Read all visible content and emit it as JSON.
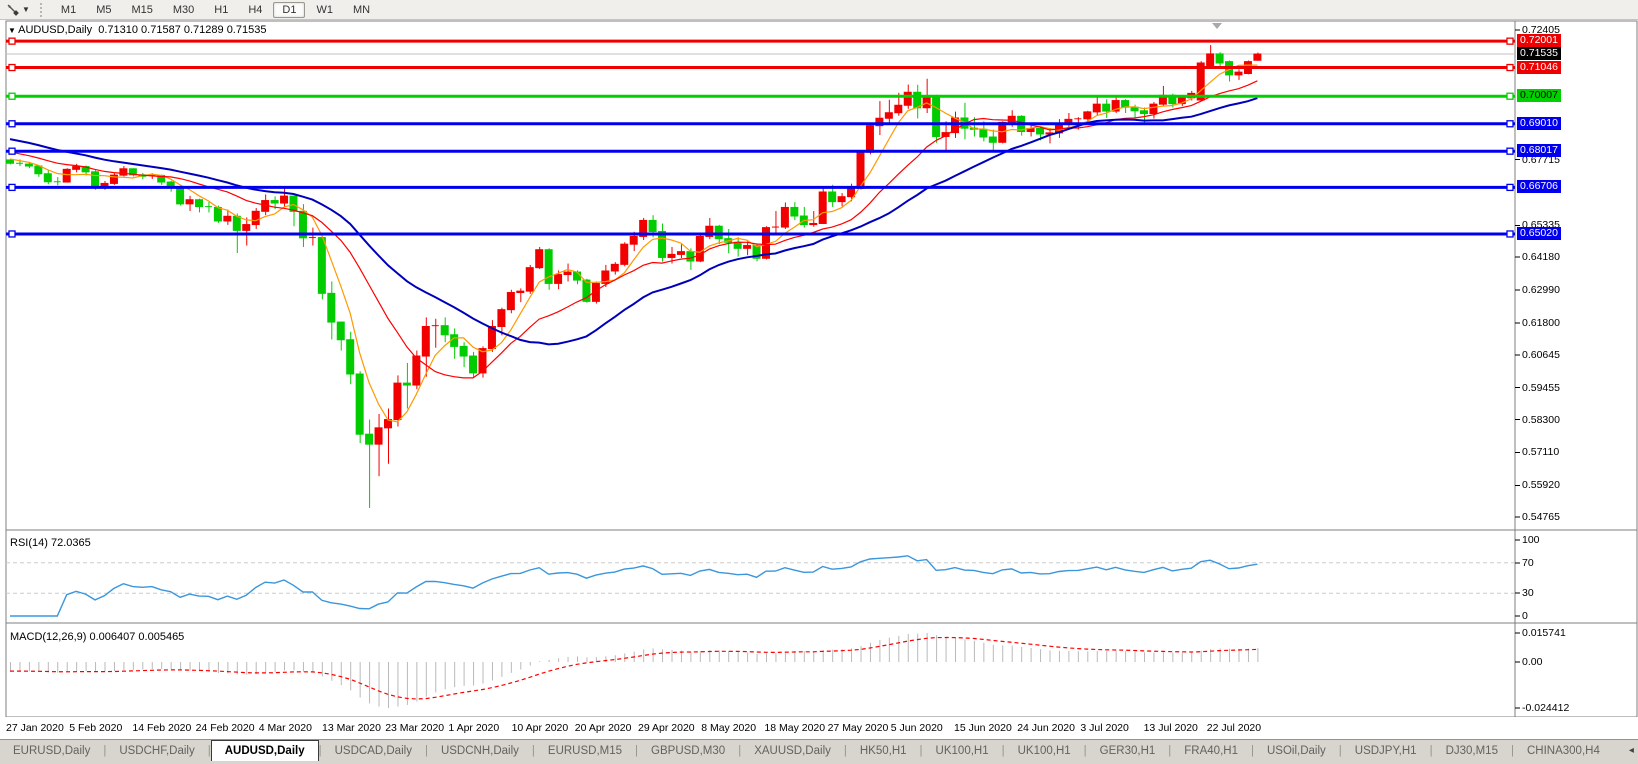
{
  "palette": {
    "up": "#f20000",
    "down": "#00cc00",
    "red_line": "#ee0000",
    "green_line": "#00d000",
    "blue_line": "#0000ee",
    "ma_fast": "#ff9900",
    "ma_mid": "#ff0000",
    "ma_slow": "#0000bb",
    "rsi_line": "#3a96dd",
    "macd_hist": "#b9b9b9",
    "macd_signal": "#ff0000",
    "current_line": "#c0c0c0",
    "grid_dash": "#cccccc"
  },
  "toolbar": {
    "periods": [
      "M1",
      "M5",
      "M15",
      "M30",
      "H1",
      "H4",
      "D1",
      "W1",
      "MN"
    ],
    "active_period": "D1",
    "indicator_icon": "cursor-indicator-icon"
  },
  "chart": {
    "title_symbol": "AUDUSD,Daily",
    "title_ohlc": "0.71310 0.71587 0.71289 0.71535",
    "current_price": "0.71535",
    "price_axis_ticks": [
      "0.72405",
      "0.67715",
      "0.65335",
      "0.64180",
      "0.62990",
      "0.61800",
      "0.60645",
      "0.59455",
      "0.58300",
      "0.57110",
      "0.55920",
      "0.54765"
    ],
    "hlines": [
      {
        "price": 0.72001,
        "label": "0.72001",
        "color": "red"
      },
      {
        "price": 0.71046,
        "label": "0.71046",
        "color": "red"
      },
      {
        "price": 0.70007,
        "label": "0.70007",
        "color": "green"
      },
      {
        "price": 0.6901,
        "label": "0.69010",
        "color": "blue"
      },
      {
        "price": 0.68017,
        "label": "0.68017",
        "color": "blue"
      },
      {
        "price": 0.66706,
        "label": "0.66706",
        "color": "blue"
      },
      {
        "price": 0.6502,
        "label": "0.65020",
        "color": "blue"
      }
    ]
  },
  "rsi": {
    "label": "RSI(14)",
    "value": "72.0365",
    "axis_ticks": [
      "100",
      "70",
      "30",
      "0"
    ],
    "levels": [
      70,
      30
    ],
    "period": 14
  },
  "macd": {
    "label": "MACD(12,26,9)",
    "values": "0.006407 0.005465",
    "axis_ticks": [
      "0.015741",
      "0.00",
      "-0.024412"
    ],
    "fast": 12,
    "slow": 26,
    "signal": 9
  },
  "chart_data": {
    "type": "candlestick",
    "symbol": "AUDUSD",
    "timeframe": "Daily",
    "note_color_convention": "up candles red, down candles green",
    "x_labels": [
      "27 Jan 2020",
      "5 Feb 2020",
      "14 Feb 2020",
      "24 Feb 2020",
      "4 Mar 2020",
      "13 Mar 2020",
      "23 Mar 2020",
      "1 Apr 2020",
      "10 Apr 2020",
      "20 Apr 2020",
      "29 Apr 2020",
      "8 May 2020",
      "18 May 2020",
      "27 May 2020",
      "5 Jun 2020",
      "15 Jun 2020",
      "24 Jun 2020",
      "3 Jul 2020",
      "13 Jul 2020",
      "22 Jul 2020"
    ],
    "y_range": {
      "top": 0.72405,
      "bottom": 0.54765
    },
    "moving_averages": [
      {
        "name": "fast",
        "window": 5,
        "color": "ma_fast"
      },
      {
        "name": "mid",
        "window": 13,
        "color": "ma_mid"
      },
      {
        "name": "slow",
        "window": 25,
        "color": "ma_slow"
      }
    ],
    "ma_seed": {
      "start": 0.709,
      "end": 0.6775,
      "count": 50
    },
    "candles": [
      [
        0.677,
        0.6774,
        0.6754,
        0.6758
      ],
      [
        0.6758,
        0.6772,
        0.6748,
        0.6755
      ],
      [
        0.6755,
        0.6763,
        0.674,
        0.6748
      ],
      [
        0.6748,
        0.6752,
        0.6709,
        0.672
      ],
      [
        0.672,
        0.6733,
        0.6682,
        0.6691
      ],
      [
        0.6691,
        0.6708,
        0.6678,
        0.669
      ],
      [
        0.669,
        0.674,
        0.6688,
        0.6736
      ],
      [
        0.6736,
        0.6756,
        0.6725,
        0.6746
      ],
      [
        0.6746,
        0.675,
        0.6714,
        0.6727
      ],
      [
        0.6727,
        0.6733,
        0.6662,
        0.667
      ],
      [
        0.667,
        0.6694,
        0.6662,
        0.6685
      ],
      [
        0.6685,
        0.6722,
        0.668,
        0.6715
      ],
      [
        0.6715,
        0.6748,
        0.671,
        0.6738
      ],
      [
        0.6738,
        0.674,
        0.671,
        0.6716
      ],
      [
        0.6716,
        0.6723,
        0.67,
        0.6711
      ],
      [
        0.6711,
        0.6722,
        0.6701,
        0.6714
      ],
      [
        0.6714,
        0.6717,
        0.668,
        0.669
      ],
      [
        0.669,
        0.6695,
        0.6655,
        0.6673
      ],
      [
        0.6673,
        0.6678,
        0.6605,
        0.6611
      ],
      [
        0.6611,
        0.664,
        0.6585,
        0.6626
      ],
      [
        0.6626,
        0.663,
        0.658,
        0.6601
      ],
      [
        0.6601,
        0.6618,
        0.658,
        0.6598
      ],
      [
        0.6598,
        0.6605,
        0.6542,
        0.6549
      ],
      [
        0.6549,
        0.659,
        0.6535,
        0.6566
      ],
      [
        0.6566,
        0.6576,
        0.6433,
        0.6515
      ],
      [
        0.6515,
        0.6562,
        0.646,
        0.6536
      ],
      [
        0.6536,
        0.6596,
        0.652,
        0.6584
      ],
      [
        0.6584,
        0.6645,
        0.657,
        0.6623
      ],
      [
        0.6623,
        0.6638,
        0.6592,
        0.6614
      ],
      [
        0.6614,
        0.667,
        0.66,
        0.6639
      ],
      [
        0.6639,
        0.664,
        0.653,
        0.6584
      ],
      [
        0.6584,
        0.661,
        0.6455,
        0.6488
      ],
      [
        0.6488,
        0.6525,
        0.646,
        0.6489
      ],
      [
        0.6489,
        0.6495,
        0.6265,
        0.6287
      ],
      [
        0.6287,
        0.633,
        0.612,
        0.6183
      ],
      [
        0.6183,
        0.6185,
        0.608,
        0.6119
      ],
      [
        0.6119,
        0.6148,
        0.5958,
        0.5995
      ],
      [
        0.5995,
        0.6005,
        0.5745,
        0.5777
      ],
      [
        0.5777,
        0.583,
        0.551,
        0.5741
      ],
      [
        0.5741,
        0.585,
        0.5625,
        0.58
      ],
      [
        0.58,
        0.587,
        0.567,
        0.583
      ],
      [
        0.583,
        0.599,
        0.5805,
        0.5962
      ],
      [
        0.5962,
        0.6035,
        0.587,
        0.5955
      ],
      [
        0.5955,
        0.608,
        0.594,
        0.606
      ],
      [
        0.606,
        0.62,
        0.5985,
        0.6167
      ],
      [
        0.6167,
        0.6195,
        0.609,
        0.617
      ],
      [
        0.617,
        0.62,
        0.611,
        0.6137
      ],
      [
        0.6137,
        0.616,
        0.605,
        0.6095
      ],
      [
        0.6095,
        0.611,
        0.602,
        0.606
      ],
      [
        0.606,
        0.6075,
        0.598,
        0.5999
      ],
      [
        0.5999,
        0.6095,
        0.5982,
        0.6087
      ],
      [
        0.6087,
        0.619,
        0.6075,
        0.6167
      ],
      [
        0.6167,
        0.6235,
        0.6135,
        0.6228
      ],
      [
        0.6228,
        0.63,
        0.6215,
        0.629
      ],
      [
        0.629,
        0.6305,
        0.6255,
        0.6295
      ],
      [
        0.6295,
        0.639,
        0.6285,
        0.638
      ],
      [
        0.638,
        0.6455,
        0.6375,
        0.6445
      ],
      [
        0.6445,
        0.645,
        0.63,
        0.6323
      ],
      [
        0.6323,
        0.637,
        0.6302,
        0.6355
      ],
      [
        0.6355,
        0.6395,
        0.633,
        0.6364
      ],
      [
        0.6364,
        0.637,
        0.632,
        0.6335
      ],
      [
        0.6335,
        0.634,
        0.6253,
        0.6258
      ],
      [
        0.6258,
        0.633,
        0.625,
        0.6323
      ],
      [
        0.6323,
        0.639,
        0.631,
        0.6368
      ],
      [
        0.6368,
        0.64,
        0.6355,
        0.6392
      ],
      [
        0.6392,
        0.6472,
        0.6385,
        0.6465
      ],
      [
        0.6465,
        0.651,
        0.644,
        0.6493
      ],
      [
        0.6493,
        0.656,
        0.648,
        0.6551
      ],
      [
        0.6551,
        0.657,
        0.649,
        0.6511
      ],
      [
        0.6511,
        0.654,
        0.6402,
        0.6417
      ],
      [
        0.6417,
        0.6455,
        0.6395,
        0.6428
      ],
      [
        0.6428,
        0.6465,
        0.6415,
        0.6438
      ],
      [
        0.6438,
        0.645,
        0.6372,
        0.6404
      ],
      [
        0.6404,
        0.6505,
        0.64,
        0.6493
      ],
      [
        0.6493,
        0.656,
        0.6483,
        0.653
      ],
      [
        0.653,
        0.6535,
        0.6465,
        0.6485
      ],
      [
        0.6485,
        0.652,
        0.6432,
        0.6472
      ],
      [
        0.6472,
        0.649,
        0.642,
        0.645
      ],
      [
        0.645,
        0.6475,
        0.6425,
        0.646
      ],
      [
        0.646,
        0.6468,
        0.6403,
        0.6414
      ],
      [
        0.6414,
        0.653,
        0.641,
        0.6525
      ],
      [
        0.6525,
        0.6585,
        0.6505,
        0.6527
      ],
      [
        0.6527,
        0.6616,
        0.652,
        0.6598
      ],
      [
        0.6598,
        0.6617,
        0.6552,
        0.6567
      ],
      [
        0.6567,
        0.66,
        0.6525,
        0.6536
      ],
      [
        0.6536,
        0.6585,
        0.6528,
        0.654
      ],
      [
        0.654,
        0.6675,
        0.6538,
        0.6654
      ],
      [
        0.6654,
        0.668,
        0.66,
        0.6619
      ],
      [
        0.6619,
        0.665,
        0.6602,
        0.6637
      ],
      [
        0.6637,
        0.6684,
        0.662,
        0.6667
      ],
      [
        0.6667,
        0.6803,
        0.6663,
        0.6798
      ],
      [
        0.6798,
        0.69,
        0.679,
        0.6894
      ],
      [
        0.6894,
        0.6983,
        0.686,
        0.6921
      ],
      [
        0.6921,
        0.6988,
        0.6905,
        0.6941
      ],
      [
        0.6941,
        0.7013,
        0.693,
        0.6968
      ],
      [
        0.6968,
        0.7043,
        0.6955,
        0.7015
      ],
      [
        0.7015,
        0.7042,
        0.692,
        0.6959
      ],
      [
        0.6959,
        0.7064,
        0.694,
        0.7
      ],
      [
        0.7,
        0.7006,
        0.6832,
        0.6855
      ],
      [
        0.6855,
        0.691,
        0.68,
        0.6869
      ],
      [
        0.6869,
        0.6945,
        0.685,
        0.6922
      ],
      [
        0.6922,
        0.6977,
        0.6845,
        0.6885
      ],
      [
        0.6885,
        0.6925,
        0.6855,
        0.6881
      ],
      [
        0.6881,
        0.691,
        0.6837,
        0.6853
      ],
      [
        0.6853,
        0.688,
        0.68,
        0.6834
      ],
      [
        0.6834,
        0.691,
        0.683,
        0.6906
      ],
      [
        0.6906,
        0.695,
        0.689,
        0.6928
      ],
      [
        0.6928,
        0.6932,
        0.6858,
        0.6873
      ],
      [
        0.6873,
        0.6905,
        0.6855,
        0.6884
      ],
      [
        0.6884,
        0.689,
        0.6841,
        0.6864
      ],
      [
        0.6864,
        0.6885,
        0.683,
        0.6868
      ],
      [
        0.6868,
        0.6918,
        0.685,
        0.6902
      ],
      [
        0.6902,
        0.694,
        0.688,
        0.6917
      ],
      [
        0.6917,
        0.6925,
        0.688,
        0.6919
      ],
      [
        0.6919,
        0.6948,
        0.69,
        0.6944
      ],
      [
        0.6944,
        0.6998,
        0.693,
        0.6972
      ],
      [
        0.6972,
        0.699,
        0.6922,
        0.6947
      ],
      [
        0.6947,
        0.7,
        0.694,
        0.6985
      ],
      [
        0.6985,
        0.699,
        0.694,
        0.6961
      ],
      [
        0.6961,
        0.697,
        0.692,
        0.6948
      ],
      [
        0.6948,
        0.696,
        0.69,
        0.6938
      ],
      [
        0.6938,
        0.698,
        0.692,
        0.6972
      ],
      [
        0.6972,
        0.7038,
        0.6965,
        0.7004
      ],
      [
        0.7004,
        0.701,
        0.696,
        0.6974
      ],
      [
        0.6974,
        0.7004,
        0.6965,
        0.6995
      ],
      [
        0.6995,
        0.702,
        0.6985,
        0.7011
      ],
      [
        0.6987,
        0.7128,
        0.6985,
        0.7121
      ],
      [
        0.7107,
        0.7186,
        0.71,
        0.7154
      ],
      [
        0.7154,
        0.716,
        0.711,
        0.7121
      ],
      [
        0.7126,
        0.713,
        0.7054,
        0.7078
      ],
      [
        0.7078,
        0.7098,
        0.706,
        0.7088
      ],
      [
        0.7083,
        0.713,
        0.708,
        0.7126
      ],
      [
        0.7131,
        0.71587,
        0.71289,
        0.71535
      ]
    ]
  },
  "tabs": {
    "items": [
      "EURUSD,Daily",
      "USDCHF,Daily",
      "AUDUSD,Daily",
      "USDCAD,Daily",
      "USDCNH,Daily",
      "EURUSD,M15",
      "GBPUSD,M30",
      "XAUUSD,Daily",
      "HK50,H1",
      "UK100,H1",
      "UK100,H1",
      "GER30,H1",
      "FRA40,H1",
      "USOil,Daily",
      "USDJPY,H1",
      "DJ30,M15",
      "CHINA300,H4"
    ],
    "active": "AUDUSD,Daily",
    "scroll_left": "◂",
    "scroll_right": "▸"
  }
}
